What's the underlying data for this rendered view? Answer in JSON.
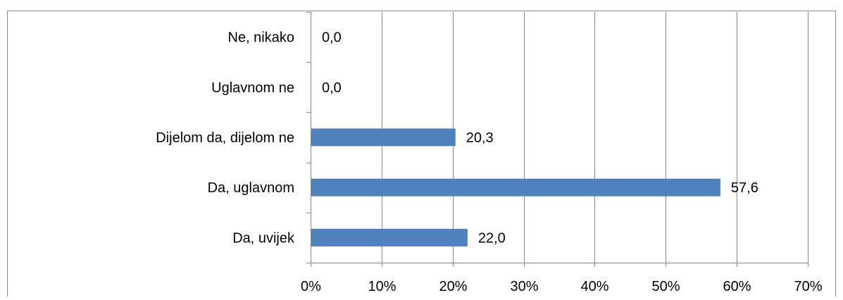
{
  "chart_data": {
    "type": "bar",
    "orientation": "horizontal",
    "categories": [
      "Ne, nikako",
      "Uglavnom ne",
      "Dijelom da, dijelom ne",
      "Da, uglavnom",
      "Da, uvijek"
    ],
    "values": [
      0.0,
      0.0,
      20.3,
      57.6,
      22.0
    ],
    "value_labels": [
      "0,0",
      "0,0",
      "20,3",
      "57,6",
      "22,0"
    ],
    "x_ticks": [
      "0%",
      "10%",
      "20%",
      "30%",
      "40%",
      "50%",
      "60%",
      "70%"
    ],
    "xlim": [
      0,
      70
    ],
    "grid": true,
    "bar_color": "#4f81bd",
    "title": "",
    "xlabel": "",
    "ylabel": ""
  }
}
